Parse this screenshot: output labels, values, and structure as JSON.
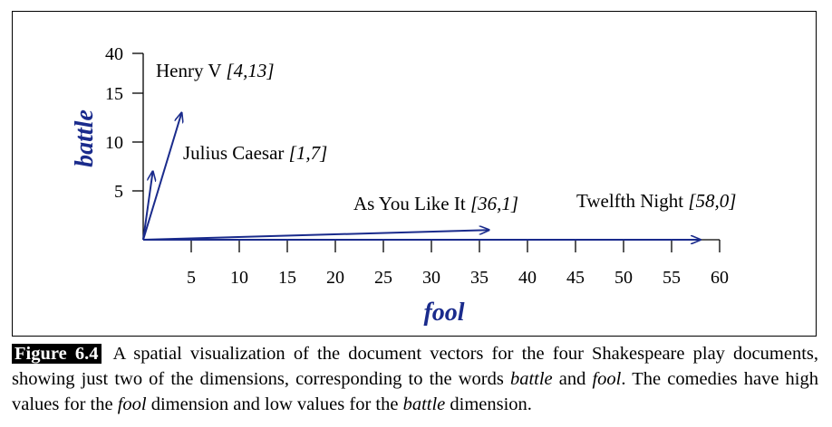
{
  "chart_data": {
    "type": "scatter",
    "title": "",
    "xlabel": "fool",
    "ylabel": "battle",
    "xlim": [
      0,
      60
    ],
    "ylim": [
      0,
      40
    ],
    "y_scale": "broken (0-15 linear, then 40)",
    "x_ticks": [
      5,
      10,
      15,
      20,
      25,
      30,
      35,
      40,
      45,
      50,
      55,
      60
    ],
    "y_ticks": [
      5,
      10,
      15,
      40
    ],
    "grid": false,
    "accent_color": "#1a2b8c",
    "points": [
      {
        "name": "Henry V",
        "coords": "[4,13]",
        "x": 4,
        "y": 13
      },
      {
        "name": "Julius Caesar",
        "coords": "[1,7]",
        "x": 1,
        "y": 7
      },
      {
        "name": "As You Like It",
        "coords": "[36,1]",
        "x": 36,
        "y": 1
      },
      {
        "name": "Twelfth Night",
        "coords": "[58,0]",
        "x": 58,
        "y": 0
      }
    ]
  },
  "caption": {
    "label": "Figure 6.4",
    "part1": "A spatial visualization of the document vectors for the four Shakespeare play documents, showing just two of the dimensions, corresponding to the words ",
    "word_battle": "battle",
    "part2": " and ",
    "word_fool": "fool",
    "part3": ". The comedies have high values for the ",
    "word_fool_2": "fool",
    "part4": " dimension and low values for the ",
    "word_battle_2": "battle",
    "part5": " dimension."
  }
}
